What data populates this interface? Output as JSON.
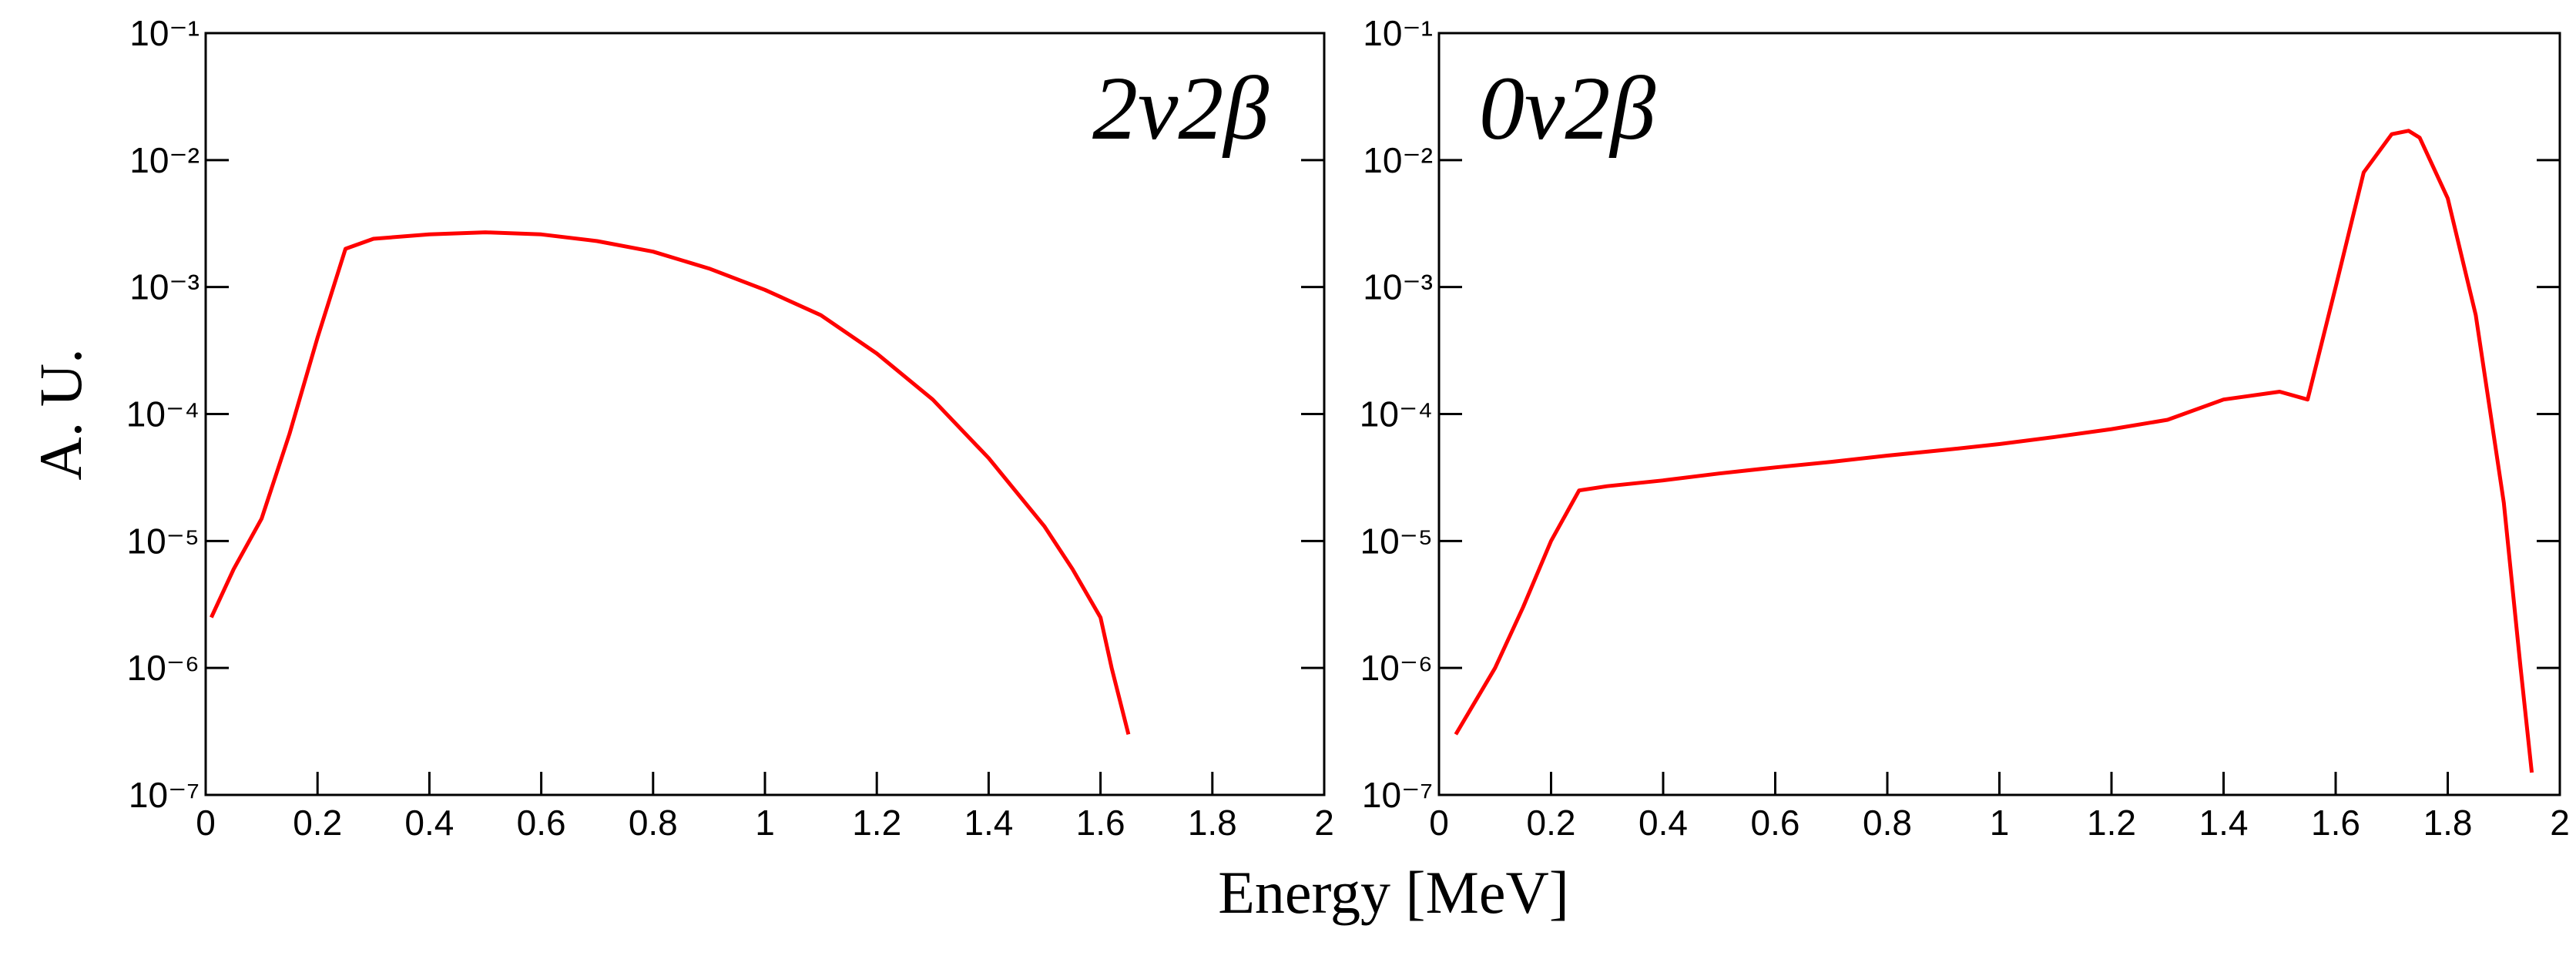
{
  "chart_data": [
    {
      "type": "line",
      "annotation": "2ν2β",
      "ylabel": "A. U.",
      "xlabel": "Energy [MeV]",
      "ylog": true,
      "grid": false,
      "xlim": [
        0,
        2
      ],
      "xticks": [
        0,
        0.2,
        0.4,
        0.6,
        0.8,
        1,
        1.2,
        1.4,
        1.6,
        1.8,
        2
      ],
      "ylim": [
        1e-07,
        0.1
      ],
      "yticks": [
        {
          "value": 1e-07,
          "label": "10⁻⁷"
        },
        {
          "value": 1e-06,
          "label": "10⁻⁶"
        },
        {
          "value": 1e-05,
          "label": "10⁻⁵"
        },
        {
          "value": 0.0001,
          "label": "10⁻⁴"
        },
        {
          "value": 0.001,
          "label": "10⁻³"
        },
        {
          "value": 0.01,
          "label": "10⁻²"
        },
        {
          "value": 0.1,
          "label": "10⁻¹"
        }
      ],
      "x": [
        0.01,
        0.05,
        0.1,
        0.15,
        0.2,
        0.25,
        0.3,
        0.4,
        0.5,
        0.6,
        0.7,
        0.8,
        0.9,
        1.0,
        1.1,
        1.2,
        1.3,
        1.4,
        1.5,
        1.55,
        1.6,
        1.62,
        1.65
      ],
      "series": [
        {
          "color": "#ff0000",
          "values": [
            2.5e-06,
            6e-06,
            1.5e-05,
            7e-05,
            0.0004,
            0.002,
            0.0024,
            0.0026,
            0.0027,
            0.0026,
            0.0023,
            0.0019,
            0.0014,
            0.00095,
            0.0006,
            0.0003,
            0.00013,
            4.5e-05,
            1.3e-05,
            6e-06,
            2.5e-06,
            1e-06,
            3e-07
          ]
        }
      ]
    },
    {
      "type": "line",
      "annotation": "0ν2β",
      "ylog": true,
      "grid": false,
      "xlim": [
        0,
        2
      ],
      "xticks": [
        0,
        0.2,
        0.4,
        0.6,
        0.8,
        1,
        1.2,
        1.4,
        1.6,
        1.8,
        2
      ],
      "ylim": [
        1e-07,
        0.1
      ],
      "yticks": [
        {
          "value": 1e-07,
          "label": "10⁻⁷"
        },
        {
          "value": 1e-06,
          "label": "10⁻⁶"
        },
        {
          "value": 1e-05,
          "label": "10⁻⁵"
        },
        {
          "value": 0.0001,
          "label": "10⁻⁴"
        },
        {
          "value": 0.001,
          "label": "10⁻³"
        },
        {
          "value": 0.01,
          "label": "10⁻²"
        },
        {
          "value": 0.1,
          "label": "10⁻¹"
        }
      ],
      "x": [
        0.03,
        0.1,
        0.15,
        0.2,
        0.25,
        0.3,
        0.4,
        0.5,
        0.6,
        0.7,
        0.8,
        0.9,
        1.0,
        1.1,
        1.2,
        1.3,
        1.4,
        1.5,
        1.55,
        1.6,
        1.65,
        1.7,
        1.73,
        1.75,
        1.8,
        1.85,
        1.9,
        1.93,
        1.95
      ],
      "series": [
        {
          "color": "#ff0000",
          "values": [
            3e-07,
            1e-06,
            3e-06,
            1e-05,
            2.5e-05,
            2.7e-05,
            3e-05,
            3.4e-05,
            3.8e-05,
            4.2e-05,
            4.7e-05,
            5.2e-05,
            5.8e-05,
            6.6e-05,
            7.6e-05,
            9e-05,
            0.00013,
            0.00015,
            0.00013,
            0.001,
            0.008,
            0.016,
            0.017,
            0.015,
            0.005,
            0.0006,
            2e-05,
            1e-06,
            1.5e-07
          ]
        }
      ]
    }
  ]
}
